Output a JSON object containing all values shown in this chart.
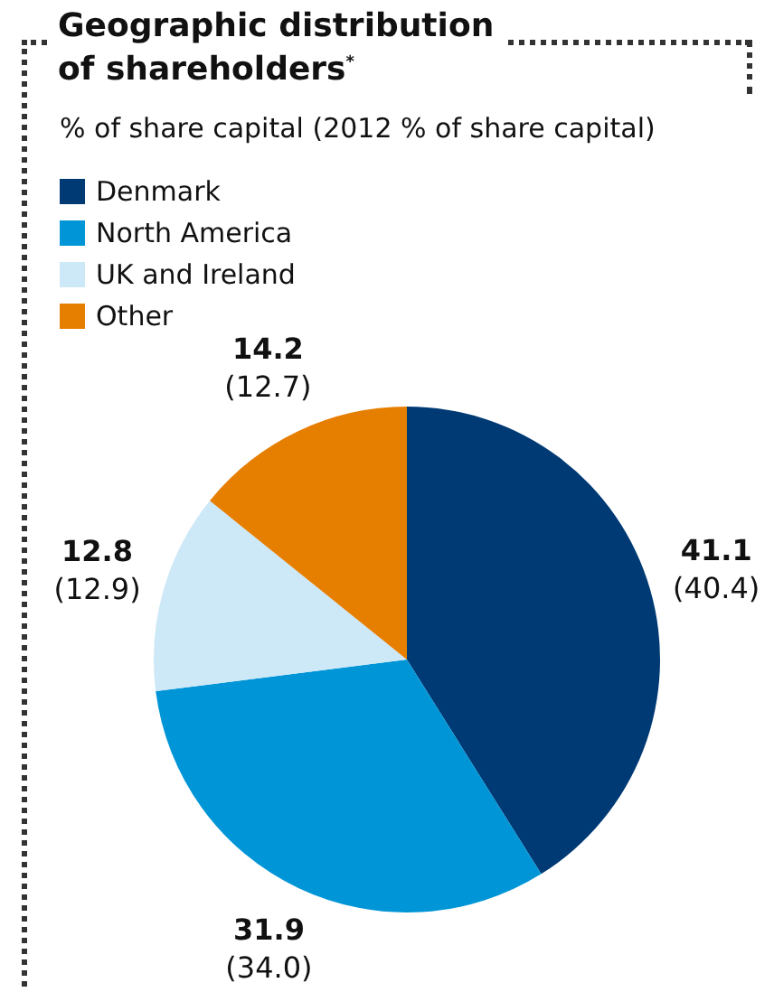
{
  "chart_data": {
    "type": "pie",
    "title": "Geographic distribution of shareholders$^{*}$",
    "subtitle": "% of share capital (2012 % of share capital)",
    "categories": [
      "Denmark",
      "North America",
      "UK and Ireland",
      "Other"
    ],
    "values": [
      41.1,
      31.9,
      12.8,
      14.2
    ],
    "colors": [
      "#003a75",
      "#0095d6",
      "#cde8f7",
      "#e67e00"
    ],
    "data_labels": true,
    "legend": "top left",
    "annotations": [
      {
        "text": "(40.4)",
        "x": "Denmark"
      },
      {
        "text": "(34.0)",
        "x": "North America"
      },
      {
        "text": "(12.9)",
        "x": "UK and Ireland"
      },
      {
        "text": "(12.7)",
        "x": "Other"
      }
    ]
  }
}
